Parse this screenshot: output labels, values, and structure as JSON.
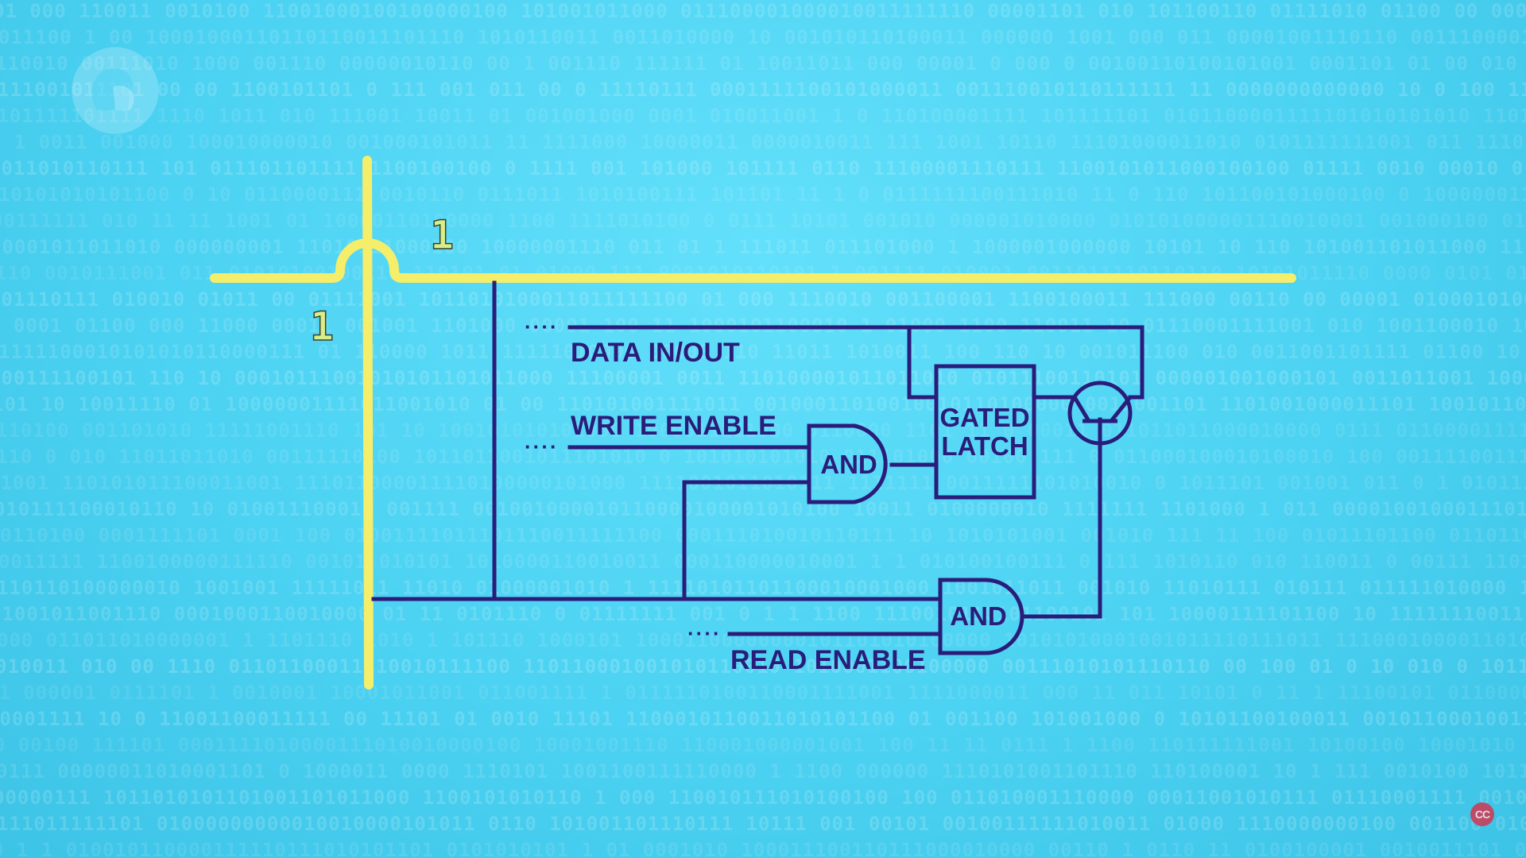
{
  "labels": {
    "data_in_out": "DATA IN/OUT",
    "write_enable": "WRITE ENABLE",
    "read_enable": "READ ENABLE",
    "gated_latch_line1": "GATED",
    "gated_latch_line2": "LATCH",
    "and_gate_top": "AND",
    "and_gate_bottom": "AND",
    "ellipsis": "····"
  },
  "signals": {
    "column_bit": "1",
    "row_bit": "1"
  },
  "overlays": {
    "cc_badge": "CC"
  },
  "icons": {
    "logo": "pbs-logo-icon",
    "cc": "closed-captions-icon"
  },
  "colors": {
    "background": "#4fd3f2",
    "wire_yellow": "#f4ee6b",
    "wire_purple": "#2a1c7a",
    "bit_label": "#d7ef8a"
  }
}
